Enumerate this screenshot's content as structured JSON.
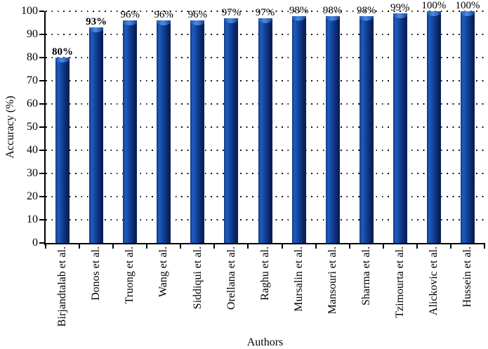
{
  "chart_data": {
    "type": "bar",
    "title": "",
    "xlabel": "Authors",
    "ylabel": "Accuracy (%)",
    "ylim": [
      0,
      100
    ],
    "y_ticks": [
      0,
      10,
      20,
      30,
      40,
      50,
      60,
      70,
      80,
      90,
      100
    ],
    "y_tick_labels": [
      "0",
      "10",
      "20",
      "30",
      "40",
      "50",
      "60",
      "70",
      "80",
      "90",
      "100"
    ],
    "grid": "horizontal-dotted",
    "legend_position": "none",
    "categories": [
      "Birjandtalab et al.",
      "Donos et al.",
      "Truong et al.",
      "Wang et al.",
      "Siddiqui et al.",
      "Orellana et al.",
      "Raghu et al.",
      "Mursalin et al.",
      "Mansouri et al.",
      "Sharma et al.",
      "Tzimourta et al.",
      "Alickovic et al.",
      "Hussein et al."
    ],
    "values": [
      80,
      93,
      96,
      96,
      96,
      97,
      97,
      98,
      98,
      98,
      99,
      100,
      100
    ],
    "data_labels": [
      "80%",
      "93%",
      "96%",
      "96%",
      "96%",
      "97%",
      "97%",
      "98%",
      "98%",
      "98%",
      "99%",
      "100%",
      "100%"
    ],
    "data_labels_bold": [
      true,
      true,
      false,
      false,
      false,
      false,
      false,
      false,
      false,
      false,
      false,
      false,
      false
    ],
    "colors": {
      "bar_edge_dark": "#071c4d",
      "bar_body": "#164aa4",
      "bar_highlight": "#1e5cc0",
      "bar_cap_highlight": "#4b8ae2",
      "axis": "#000000",
      "grid_dots": "#141414",
      "label_text": "#000000",
      "background": "#ffffff"
    }
  }
}
